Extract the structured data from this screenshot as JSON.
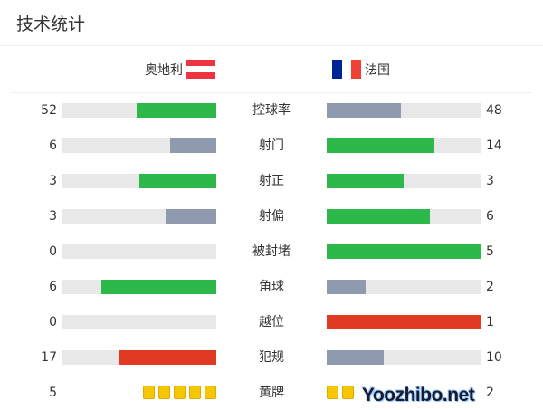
{
  "title": "技术统计",
  "home": {
    "name": "奥地利",
    "flag_colors": [
      "#ef3340",
      "#ffffff",
      "#ef3340"
    ]
  },
  "away": {
    "name": "法国",
    "flag_colors": [
      "#002395",
      "#ffffff",
      "#ef4135"
    ]
  },
  "colors": {
    "green": "#2db84a",
    "gray": "#8f9aae",
    "red": "#e03a22",
    "track": "#e8e8e8",
    "card": "#f6c700"
  },
  "stats": [
    {
      "label": "控球率",
      "home": "52",
      "away": "48",
      "home_fill": 0.52,
      "away_fill": 0.48,
      "home_color": "green",
      "away_color": "gray"
    },
    {
      "label": "射门",
      "home": "6",
      "away": "14",
      "home_fill": 0.3,
      "away_fill": 0.7,
      "home_color": "gray",
      "away_color": "green"
    },
    {
      "label": "射正",
      "home": "3",
      "away": "3",
      "home_fill": 0.5,
      "away_fill": 0.5,
      "home_color": "green",
      "away_color": "green"
    },
    {
      "label": "射偏",
      "home": "3",
      "away": "6",
      "home_fill": 0.33,
      "away_fill": 0.67,
      "home_color": "gray",
      "away_color": "green"
    },
    {
      "label": "被封堵",
      "home": "0",
      "away": "5",
      "home_fill": 0,
      "away_fill": 1,
      "home_color": "gray",
      "away_color": "green"
    },
    {
      "label": "角球",
      "home": "6",
      "away": "2",
      "home_fill": 0.75,
      "away_fill": 0.25,
      "home_color": "green",
      "away_color": "gray"
    },
    {
      "label": "越位",
      "home": "0",
      "away": "1",
      "home_fill": 0,
      "away_fill": 1,
      "home_color": "gray",
      "away_color": "red"
    },
    {
      "label": "犯规",
      "home": "17",
      "away": "10",
      "home_fill": 0.63,
      "away_fill": 0.37,
      "home_color": "red",
      "away_color": "gray"
    }
  ],
  "yellow": {
    "label": "黄牌",
    "home": "5",
    "away": "2",
    "home_count": 5,
    "away_count": 2
  },
  "watermark": "Yoozhibo.net"
}
